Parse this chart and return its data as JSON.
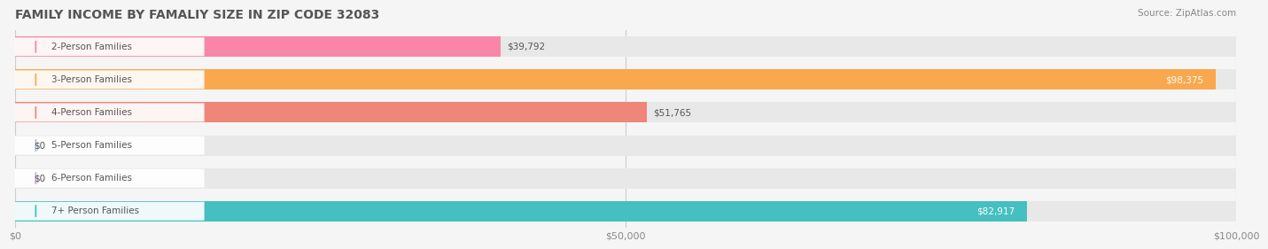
{
  "title": "FAMILY INCOME BY FAMALIY SIZE IN ZIP CODE 32083",
  "source": "Source: ZipAtlas.com",
  "categories": [
    "2-Person Families",
    "3-Person Families",
    "4-Person Families",
    "5-Person Families",
    "6-Person Families",
    "7+ Person Families"
  ],
  "values": [
    39792,
    98375,
    51765,
    0,
    0,
    82917
  ],
  "bar_colors": [
    "#F986A8",
    "#F9A84E",
    "#F0857A",
    "#A8B8E8",
    "#C8A8D8",
    "#45BFC0"
  ],
  "label_colors": [
    "#F986A8",
    "#F9A84E",
    "#F0857A",
    "#A8B8E8",
    "#C8A8D8",
    "#45BFC0"
  ],
  "value_labels": [
    "$39,792",
    "$98,375",
    "$51,765",
    "$0",
    "$0",
    "$82,917"
  ],
  "value_label_inside": [
    false,
    true,
    false,
    false,
    false,
    true
  ],
  "xlim": [
    0,
    100000
  ],
  "xticks": [
    0,
    50000,
    100000
  ],
  "xtick_labels": [
    "$0",
    "$50,000",
    "$100,000"
  ],
  "background_color": "#f5f5f5",
  "bar_bg_color": "#e8e8e8",
  "title_color": "#555555",
  "source_color": "#888888",
  "label_text_color": "#555555",
  "value_text_color_inside": "#ffffff",
  "value_text_color_outside": "#555555"
}
